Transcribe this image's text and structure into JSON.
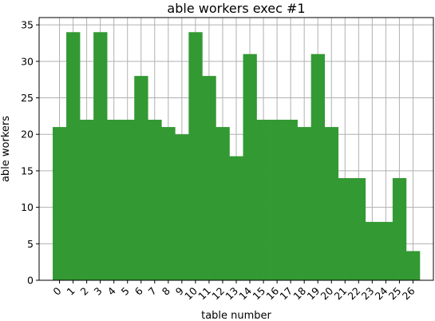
{
  "chart_data": {
    "type": "bar",
    "title": "able workers exec #1",
    "xlabel": "table number",
    "ylabel": "able workers",
    "categories": [
      "0",
      "1",
      "2",
      "3",
      "4",
      "5",
      "6",
      "7",
      "8",
      "9",
      "10",
      "11",
      "12",
      "13",
      "14",
      "15",
      "16",
      "17",
      "18",
      "19",
      "20",
      "21",
      "22",
      "23",
      "24",
      "25",
      "26"
    ],
    "values": [
      21,
      34,
      22,
      34,
      22,
      22,
      28,
      22,
      21,
      20,
      34,
      28,
      21,
      17,
      31,
      22,
      22,
      22,
      21,
      31,
      21,
      14,
      14,
      8,
      8,
      14,
      4
    ],
    "ylim": [
      0,
      36
    ],
    "yticks": [
      "0",
      "5",
      "10",
      "15",
      "20",
      "25",
      "30",
      "35"
    ],
    "grid": true,
    "bar_color": "#339933",
    "grid_color": "#b0b0b0"
  }
}
